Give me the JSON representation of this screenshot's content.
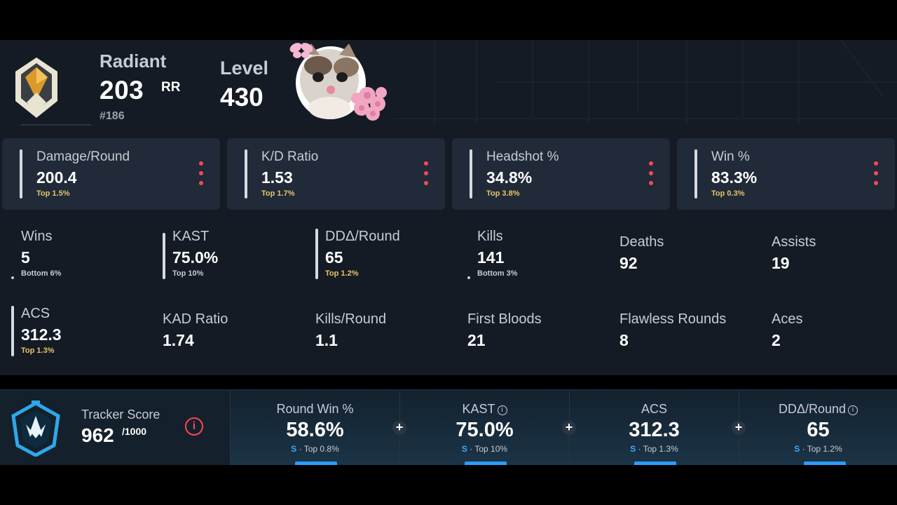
{
  "header": {
    "rank_name": "Radiant",
    "rr_value": "203",
    "rr_unit": "RR",
    "leaderboard": "#186",
    "level_label": "Level",
    "level_value": "430"
  },
  "top_cards": [
    {
      "label": "Damage/Round",
      "value": "200.4",
      "percentile": "Top 1.5%"
    },
    {
      "label": "K/D Ratio",
      "value": "1.53",
      "percentile": "Top 1.7%"
    },
    {
      "label": "Headshot %",
      "value": "34.8%",
      "percentile": "Top 3.8%"
    },
    {
      "label": "Win %",
      "value": "83.3%",
      "percentile": "Top 0.3%"
    }
  ],
  "stats_row1": [
    {
      "label": "Wins",
      "value": "5",
      "percentile": "Bottom 6%"
    },
    {
      "label": "KAST",
      "value": "75.0%",
      "percentile": "Top 10%"
    },
    {
      "label": "DDΔ/Round",
      "value": "65",
      "percentile": "Top 1.2%"
    },
    {
      "label": "Kills",
      "value": "141",
      "percentile": "Bottom 3%"
    },
    {
      "label": "Deaths",
      "value": "92"
    },
    {
      "label": "Assists",
      "value": "19"
    }
  ],
  "stats_row2": [
    {
      "label": "ACS",
      "value": "312.3",
      "percentile": "Top 1.3%"
    },
    {
      "label": "KAD Ratio",
      "value": "1.74"
    },
    {
      "label": "Kills/Round",
      "value": "1.1"
    },
    {
      "label": "First Bloods",
      "value": "21"
    },
    {
      "label": "Flawless Rounds",
      "value": "8"
    },
    {
      "label": "Aces",
      "value": "2"
    }
  ],
  "tracker": {
    "label": "Tracker Score",
    "value": "962",
    "max": "/1000",
    "info_glyph": "i",
    "cells": [
      {
        "label": "Round Win %",
        "value": "58.6%",
        "grade": "S",
        "percentile": " · Top 0.8%"
      },
      {
        "label": "KAST",
        "value": "75.0%",
        "grade": "S",
        "percentile": " · Top 10%"
      },
      {
        "label": "ACS",
        "value": "312.3",
        "grade": "S",
        "percentile": " · Top 1.3%"
      },
      {
        "label": "DDΔ/Round",
        "value": "65",
        "grade": "S",
        "percentile": " · Top 1.2%"
      }
    ]
  },
  "colors": {
    "accent_red": "#ff4655",
    "gold": "#e7c46d",
    "grade_blue": "#3fa7ff",
    "panel_bg": "#151b24",
    "card_bg": "#202a38"
  },
  "icons": {
    "rank": "radiant-rank-icon",
    "tracker": "tracker-score-emblem-icon",
    "kebab": "kebab-menu-icon",
    "info": "info-icon",
    "plus": "plus-icon"
  }
}
